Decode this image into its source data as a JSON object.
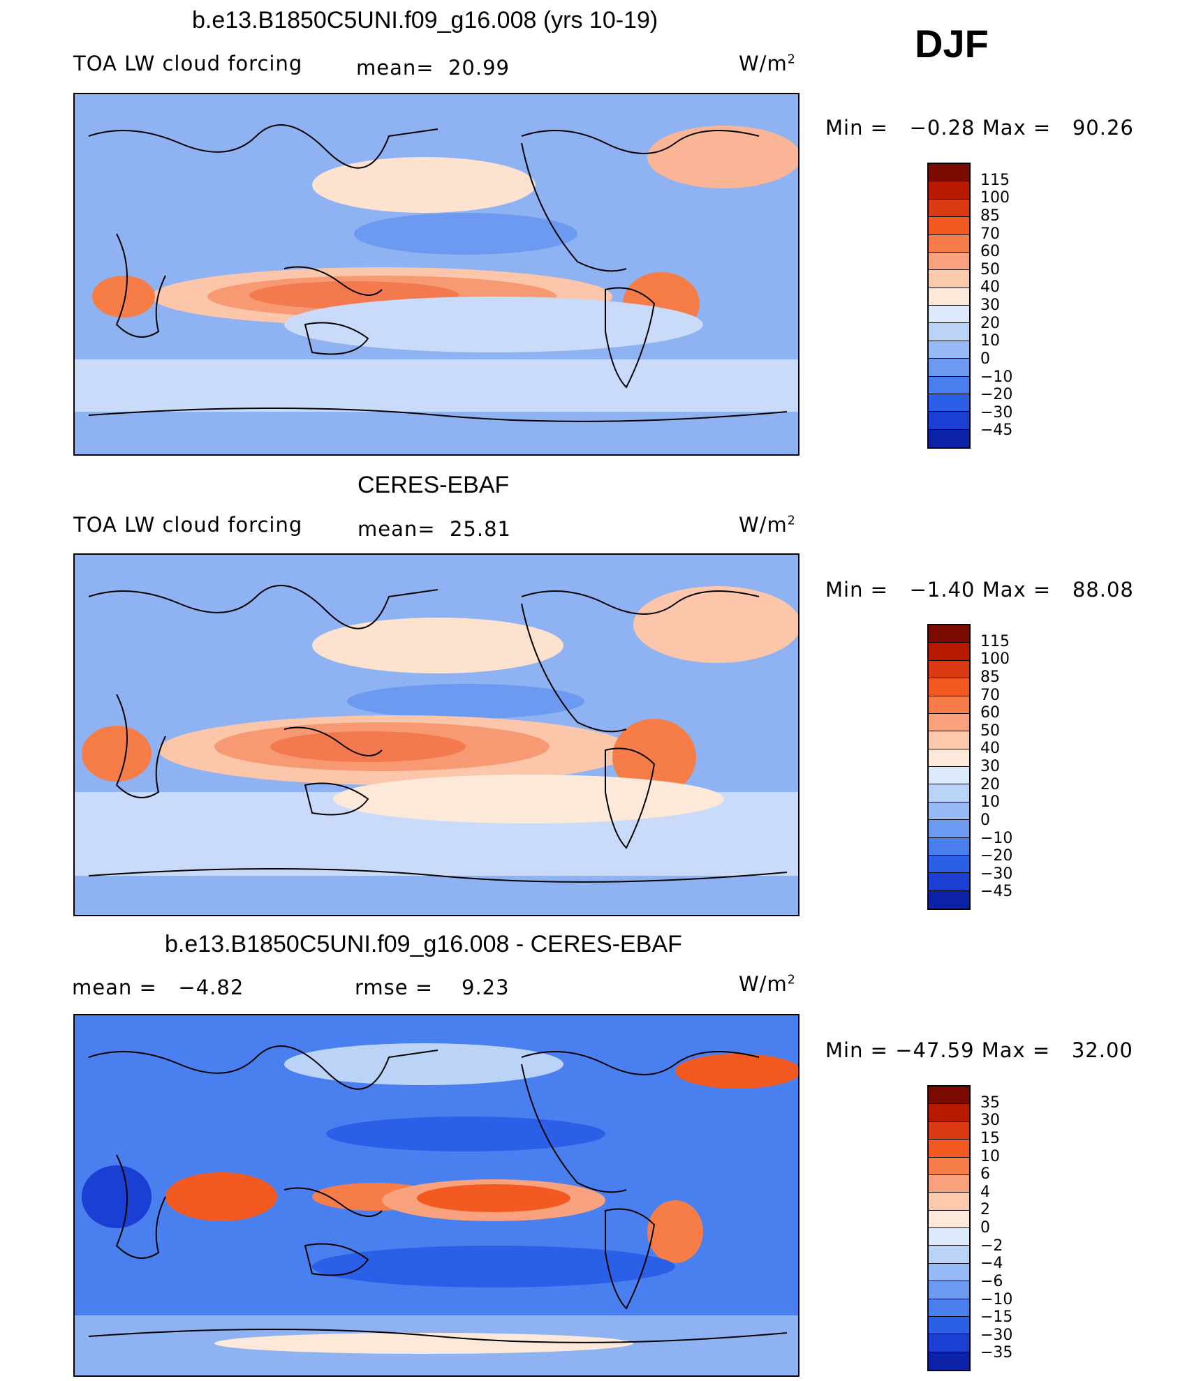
{
  "season": "DJF",
  "panels": [
    {
      "id": "model",
      "title": "b.e13.B1850C5UNI.f09_g16.008 (yrs 10-19)",
      "left_label": "TOA LW cloud forcing",
      "mean_label": "mean=  20.99",
      "units": "W/m",
      "units_exp": "2",
      "minmax": "Min =   −0.28 Max =   90.26",
      "colorbar": {
        "colors": [
          "#7a0a00",
          "#b81a00",
          "#dc3a12",
          "#f25a22",
          "#f67d48",
          "#f9a27d",
          "#fcc9ad",
          "#fde9d9",
          "#dceafb",
          "#bcd3f8",
          "#97b9f5",
          "#6c9af0",
          "#4a7ff0",
          "#2b5fe8",
          "#1b3fd2",
          "#0b22a8",
          "#030d7a"
        ],
        "labels": [
          "115",
          "100",
          "85",
          "70",
          "60",
          "50",
          "40",
          "30",
          "20",
          "10",
          "0",
          "−10",
          "−20",
          "−30",
          "−45"
        ]
      }
    },
    {
      "id": "obs",
      "title": "CERES-EBAF",
      "left_label": "TOA LW cloud forcing",
      "mean_label": "mean=  25.81",
      "units": "W/m",
      "units_exp": "2",
      "minmax": "Min =   −1.40 Max =   88.08",
      "colorbar": {
        "colors": [
          "#7a0a00",
          "#b81a00",
          "#dc3a12",
          "#f25a22",
          "#f67d48",
          "#f9a27d",
          "#fcc9ad",
          "#fde9d9",
          "#dceafb",
          "#bcd3f8",
          "#97b9f5",
          "#6c9af0",
          "#4a7ff0",
          "#2b5fe8",
          "#1b3fd2",
          "#0b22a8",
          "#030d7a"
        ],
        "labels": [
          "115",
          "100",
          "85",
          "70",
          "60",
          "50",
          "40",
          "30",
          "20",
          "10",
          "0",
          "−10",
          "−20",
          "−30",
          "−45"
        ]
      }
    },
    {
      "id": "diff",
      "title": "b.e13.B1850C5UNI.f09_g16.008 - CERES-EBAF",
      "left_label": "mean =   −4.82",
      "mean_label": "rmse =    9.23",
      "units": "W/m",
      "units_exp": "2",
      "minmax": "Min = −47.59 Max =   32.00",
      "colorbar": {
        "colors": [
          "#7a0a00",
          "#b81a00",
          "#dc3a12",
          "#f25a22",
          "#f67d48",
          "#f9a27d",
          "#fcc9ad",
          "#fde9d9",
          "#dceafb",
          "#bcd3f8",
          "#97b9f5",
          "#6c9af0",
          "#4a7ff0",
          "#2b5fe8",
          "#1b3fd2",
          "#0b22a8",
          "#030d7a"
        ],
        "labels": [
          "35",
          "30",
          "15",
          "10",
          "6",
          "4",
          "2",
          "0",
          "−2",
          "−4",
          "−6",
          "−10",
          "−15",
          "−30",
          "−35"
        ]
      }
    }
  ]
}
